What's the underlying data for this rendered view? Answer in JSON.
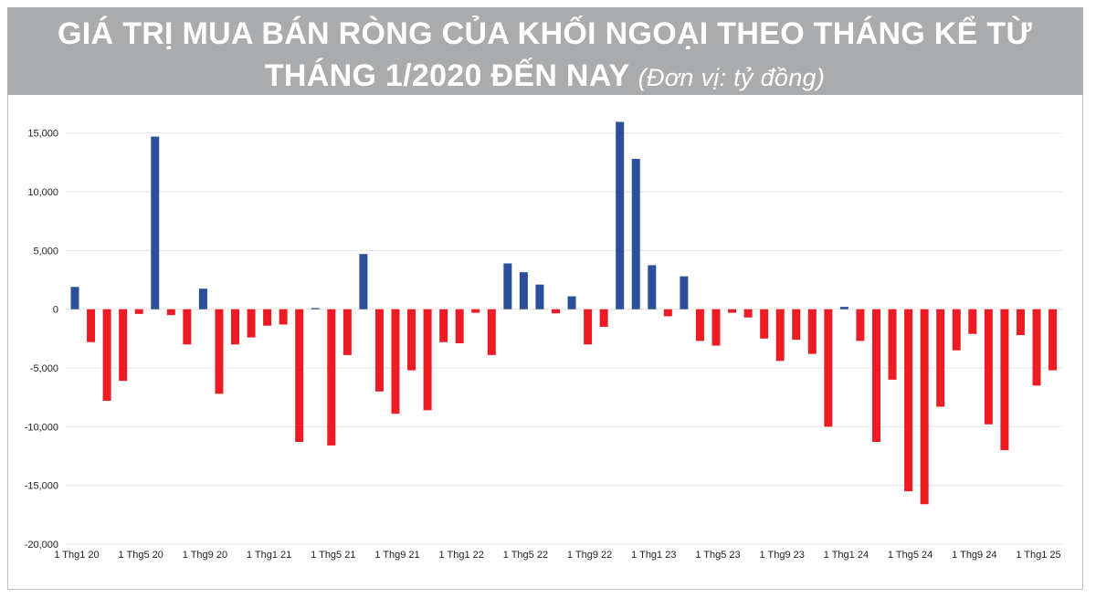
{
  "title": {
    "line1": "GIÁ TRỊ MUA BÁN RÒNG CỦA KHỐI NGOẠI THEO THÁNG KỂ TỪ",
    "line2": "THÁNG 1/2020 ĐẾN NAY",
    "unit": "(Đơn vị: tỷ đồng)"
  },
  "colors": {
    "positive": "#2b4f9a",
    "negative": "#ed1c24",
    "grid": "#e6e6e6",
    "axis_text": "#222222"
  },
  "chart_data": {
    "type": "bar",
    "grid": true,
    "ylim": [
      -20000,
      17000
    ],
    "yticks": [
      15000,
      10000,
      5000,
      0,
      -5000,
      -10000,
      -15000,
      -20000
    ],
    "ytick_labels": [
      "15,000",
      "10,000",
      "5,000",
      "0",
      "-5,000",
      "-10,000",
      "-15,000",
      "-20,000"
    ],
    "xtick_labels": [
      "1 Thg1 20",
      "1 Thg5 20",
      "1 Thg9 20",
      "1 Thg1 21",
      "1 Thg5 21",
      "1 Thg9 21",
      "1 Thg1 22",
      "1 Thg5 22",
      "1 Thg9 22",
      "1 Thg1 23",
      "1 Thg5 23",
      "1 Thg9 23",
      "1 Thg1 24",
      "1 Thg5 24",
      "1 Thg9 24",
      "1 Thg1 25"
    ],
    "categories": [
      "T1/20",
      "T2/20",
      "T3/20",
      "T4/20",
      "T5/20",
      "T6/20",
      "T7/20",
      "T8/20",
      "T9/20",
      "T10/20",
      "T11/20",
      "T12/20",
      "T1/21",
      "T2/21",
      "T3/21",
      "T4/21",
      "T5/21",
      "T6/21",
      "T7/21",
      "T8/21",
      "T9/21",
      "T10/21",
      "T11/21",
      "T12/21",
      "T1/22",
      "T2/22",
      "T3/22",
      "T4/22",
      "T5/22",
      "T6/22",
      "T7/22",
      "T8/22",
      "T9/22",
      "T10/22",
      "T11/22",
      "T12/22",
      "T1/23",
      "T2/23",
      "T3/23",
      "T4/23",
      "T5/23",
      "T6/23",
      "T7/23",
      "T8/23",
      "T9/23",
      "T10/23",
      "T11/23",
      "T12/23",
      "T1/24",
      "T2/24",
      "T3/24",
      "T4/24",
      "T5/24",
      "T6/24",
      "T7/24",
      "T8/24",
      "T9/24",
      "T10/24",
      "T11/24",
      "T12/24",
      "T1/25",
      "T2/25"
    ],
    "values": [
      1900,
      -2800,
      -7800,
      -6100,
      -400,
      14700,
      -500,
      -3000,
      1750,
      -7200,
      -3000,
      -2400,
      -1400,
      -1300,
      -11300,
      100,
      -11600,
      -3900,
      4700,
      -7000,
      -8900,
      -5200,
      -8600,
      -2800,
      -2900,
      -300,
      -3900,
      3900,
      3150,
      2100,
      -350,
      1100,
      -3000,
      -1500,
      15950,
      12800,
      3750,
      -600,
      2800,
      -2700,
      -3100,
      -300,
      -700,
      -2500,
      -4400,
      -2600,
      -3800,
      -10000,
      200,
      -2700,
      -11300,
      -6000,
      -15500,
      -16600,
      -8300,
      -3500,
      -2100,
      -9800,
      -12000,
      -2200,
      -6500,
      -5200
    ]
  }
}
